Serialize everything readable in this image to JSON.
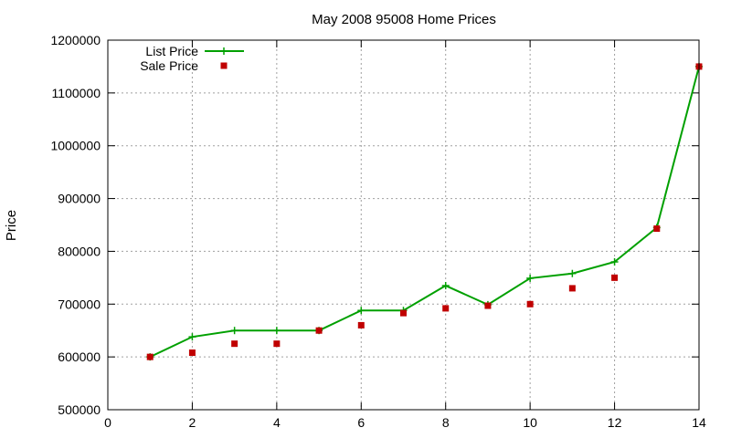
{
  "chart_data": {
    "type": "line",
    "title": "May 2008 95008 Home Prices",
    "xlabel": "",
    "ylabel": "Price",
    "xlim": [
      0,
      14
    ],
    "ylim": [
      500000,
      1200000
    ],
    "x_ticks": [
      0,
      2,
      4,
      6,
      8,
      10,
      12,
      14
    ],
    "y_ticks": [
      500000,
      600000,
      700000,
      800000,
      900000,
      1000000,
      1100000,
      1200000
    ],
    "grid": true,
    "legend_position": "top-left",
    "series": [
      {
        "name": "List Price",
        "style": "line with plus markers",
        "color": "#00a000",
        "points": [
          [
            1,
            600000
          ],
          [
            2,
            638000
          ],
          [
            3,
            650000
          ],
          [
            4,
            650000
          ],
          [
            5,
            650000
          ],
          [
            6,
            688000
          ],
          [
            7,
            688000
          ],
          [
            8,
            735000
          ],
          [
            9,
            699000
          ],
          [
            10,
            749000
          ],
          [
            11,
            758000
          ],
          [
            12,
            780000
          ],
          [
            13,
            845000
          ],
          [
            14,
            1150000
          ]
        ]
      },
      {
        "name": "Sale Price",
        "style": "square markers",
        "color": "#c00000",
        "points": [
          [
            1,
            600000
          ],
          [
            2,
            608000
          ],
          [
            3,
            625000
          ],
          [
            4,
            625000
          ],
          [
            5,
            650000
          ],
          [
            6,
            660000
          ],
          [
            7,
            683000
          ],
          [
            8,
            692000
          ],
          [
            9,
            697000
          ],
          [
            10,
            700000
          ],
          [
            11,
            730000
          ],
          [
            12,
            750000
          ],
          [
            13,
            843000
          ],
          [
            14,
            1150000
          ]
        ]
      }
    ]
  }
}
